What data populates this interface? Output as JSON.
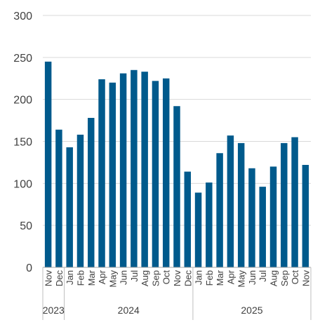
{
  "chart_data": {
    "type": "bar",
    "categories": [
      "Nov",
      "Dec",
      "Jan",
      "Feb",
      "Mar",
      "Apr",
      "May",
      "Jun",
      "Jul",
      "Aug",
      "Sep",
      "Oct",
      "Nov",
      "Dec",
      "Jan",
      "Feb",
      "Mar",
      "Apr",
      "May",
      "Jun",
      "Jul",
      "Aug",
      "Sep",
      "Oct",
      "Nov"
    ],
    "category_years": [
      "2023",
      "2023",
      "2024",
      "2024",
      "2024",
      "2024",
      "2024",
      "2024",
      "2024",
      "2024",
      "2024",
      "2024",
      "2024",
      "2024",
      "2025",
      "2025",
      "2025",
      "2025",
      "2025",
      "2025",
      "2025",
      "2025",
      "2025",
      "2025",
      "2025"
    ],
    "year_groups": [
      {
        "label": "2023",
        "count": 2
      },
      {
        "label": "2024",
        "count": 12
      },
      {
        "label": "2025",
        "count": 11
      }
    ],
    "values": [
      245,
      164,
      143,
      158,
      178,
      224,
      220,
      231,
      235,
      233,
      222,
      225,
      192,
      114,
      89,
      101,
      136,
      157,
      148,
      118,
      96,
      120,
      148,
      155,
      122
    ],
    "ylim": [
      0,
      300
    ],
    "yticks": [
      "0",
      "50",
      "100",
      "150",
      "200",
      "250",
      "300"
    ],
    "title": "",
    "xlabel": "",
    "ylabel": "",
    "grid": true,
    "bar_color": "#005A8C"
  }
}
